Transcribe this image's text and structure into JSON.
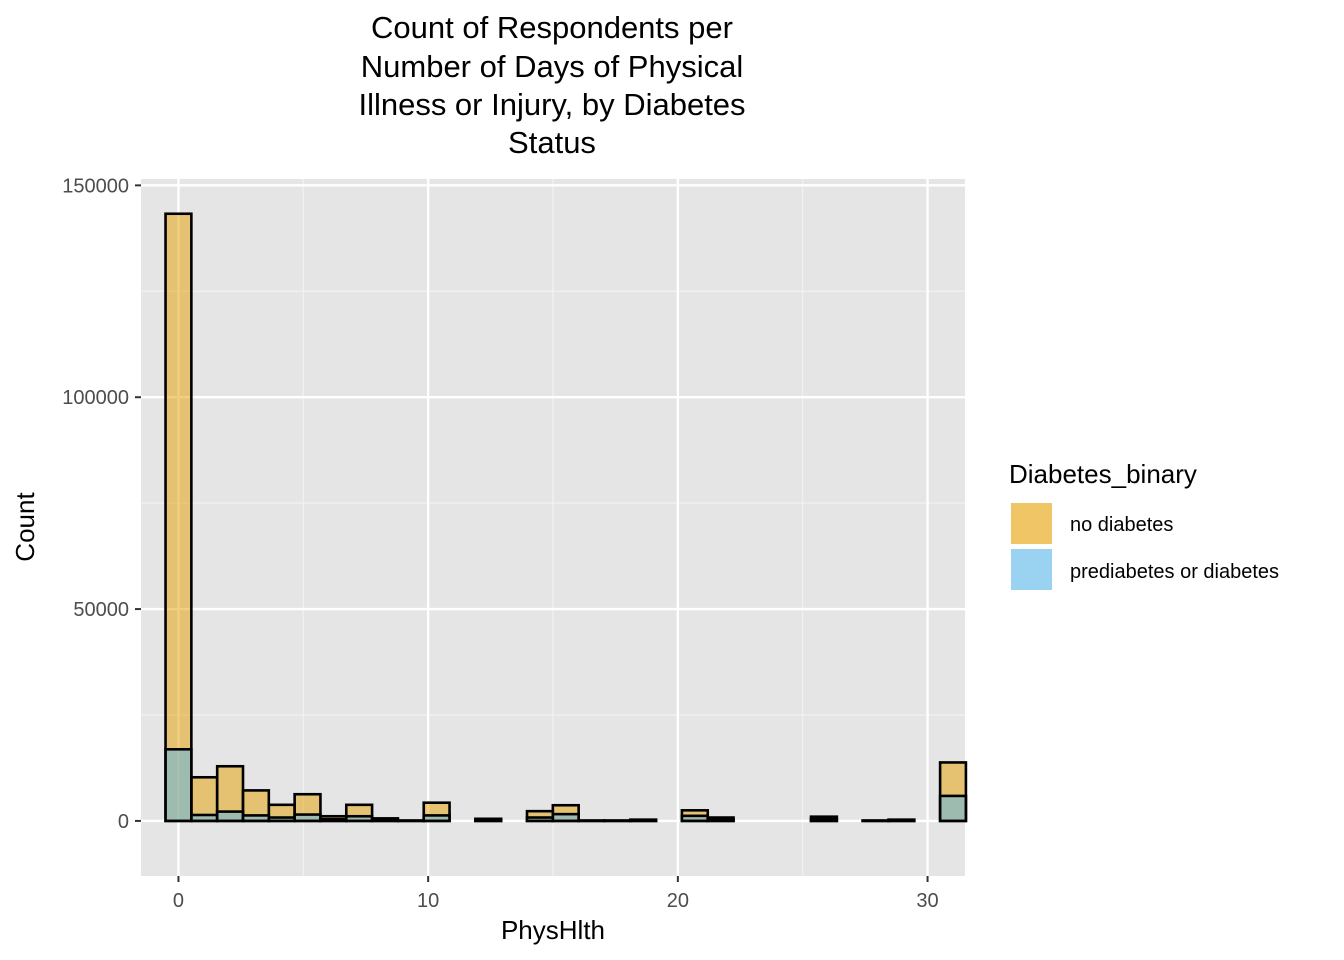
{
  "chart_data": {
    "type": "bar",
    "title_lines": [
      "Count of Respondents per",
      "Number of Days of Physical",
      "Illness or Injury, by Diabetes",
      "Status"
    ],
    "xlabel": "PhysHlth",
    "ylabel": "Count",
    "xlim": [
      -1.5,
      31.5
    ],
    "ylim": [
      -13000,
      151500
    ],
    "x_ticks": [
      0,
      10,
      20,
      30
    ],
    "y_ticks": [
      0,
      50000,
      100000,
      150000
    ],
    "bin_width": 1.034,
    "bin_start": -0.517,
    "grid": true,
    "legend": {
      "title": "Diabetes_binary",
      "position": "right",
      "entries": [
        {
          "label": "no diabetes",
          "color": "#E69F00"
        },
        {
          "label": "prediabetes or diabetes",
          "color": "#56B4E9"
        }
      ]
    },
    "series": [
      {
        "name": "no diabetes",
        "color": "#E69F00",
        "values": [
          143300,
          10300,
          12900,
          7200,
          3800,
          6300,
          1100,
          3800,
          600,
          100,
          4300,
          0,
          500,
          0,
          2300,
          3700,
          100,
          100,
          300,
          0,
          2500,
          800,
          0,
          0,
          0,
          1000,
          0,
          100,
          300,
          0,
          13800
        ]
      },
      {
        "name": "prediabetes or diabetes",
        "color": "#56B4E9",
        "values": [
          16900,
          1400,
          2200,
          1300,
          800,
          1500,
          400,
          1100,
          200,
          50,
          1300,
          0,
          150,
          0,
          800,
          1600,
          50,
          50,
          100,
          0,
          1200,
          300,
          0,
          0,
          0,
          400,
          0,
          50,
          150,
          0,
          5900
        ]
      }
    ]
  },
  "colors": {
    "panel_background": "#E5E5E5",
    "grid_major": "#FFFFFF",
    "grid_minor": "#F2F2F2",
    "bar_outline": "#000000",
    "tick_text": "#4D4D4D"
  }
}
